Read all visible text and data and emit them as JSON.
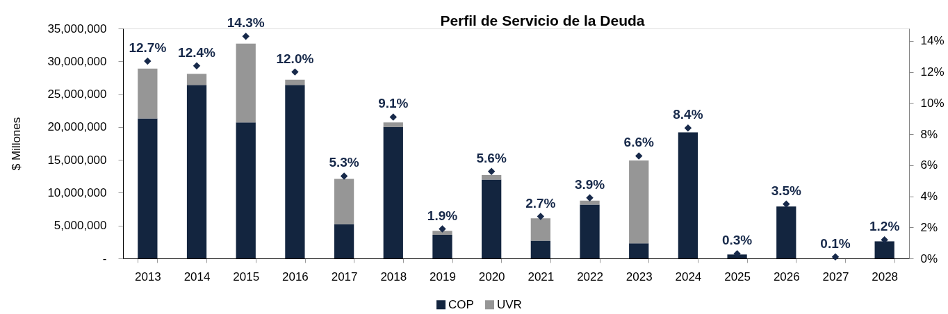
{
  "chart_data": {
    "type": "bar",
    "title": "Perfil de Servicio de la Deuda",
    "ylabel": "$ Millones",
    "stacked": true,
    "legend": "bottom",
    "categories": [
      "2013",
      "2014",
      "2015",
      "2016",
      "2017",
      "2018",
      "2019",
      "2020",
      "2021",
      "2022",
      "2023",
      "2024",
      "2025",
      "2026",
      "2027",
      "2028"
    ],
    "series": [
      {
        "name": "COP",
        "color": "#13253f",
        "values": [
          21300000,
          26400000,
          20700000,
          26400000,
          5200000,
          20000000,
          3600000,
          12000000,
          2700000,
          8200000,
          2300000,
          19200000,
          600000,
          7900000,
          null,
          2600000
        ]
      },
      {
        "name": "UVR",
        "color": "#969696",
        "values": [
          7600000,
          1700000,
          12000000,
          800000,
          6900000,
          700000,
          600000,
          700000,
          3400000,
          600000,
          12600000,
          null,
          null,
          null,
          null,
          null
        ]
      },
      {
        "type": "scatter",
        "axis": "y2",
        "marker": "diamond",
        "color": "#17294a",
        "values": [
          12.7,
          12.4,
          14.3,
          12.0,
          5.3,
          9.1,
          1.9,
          5.6,
          2.7,
          3.9,
          6.6,
          8.4,
          0.3,
          3.5,
          0.1,
          1.2
        ],
        "value_labels": [
          "12.7%",
          "12.4%",
          "14.3%",
          "12.0%",
          "5.3%",
          "9.1%",
          "1.9%",
          "5.6%",
          "2.7%",
          "3.9%",
          "6.6%",
          "8.4%",
          "0.3%",
          "3.5%",
          "0.1%",
          "1.2%"
        ]
      }
    ],
    "ylim": [
      0,
      35000000
    ],
    "yticks": [
      {
        "value": 0,
        "label": "-"
      },
      {
        "value": 5000000,
        "label": "5,000,000"
      },
      {
        "value": 10000000,
        "label": "10,000,000"
      },
      {
        "value": 15000000,
        "label": "15,000,000"
      },
      {
        "value": 20000000,
        "label": "20,000,000"
      },
      {
        "value": 25000000,
        "label": "25,000,000"
      },
      {
        "value": 30000000,
        "label": "30,000,000"
      },
      {
        "value": 35000000,
        "label": "35,000,000"
      }
    ],
    "y2lim": [
      0,
      14.8
    ],
    "y2ticks": [
      {
        "value": 0,
        "label": "0%"
      },
      {
        "value": 2,
        "label": "2%"
      },
      {
        "value": 4,
        "label": "4%"
      },
      {
        "value": 6,
        "label": "6%"
      },
      {
        "value": 8,
        "label": "8%"
      },
      {
        "value": 10,
        "label": "10%"
      },
      {
        "value": 12,
        "label": "12%"
      },
      {
        "value": 14,
        "label": "14%"
      }
    ]
  }
}
